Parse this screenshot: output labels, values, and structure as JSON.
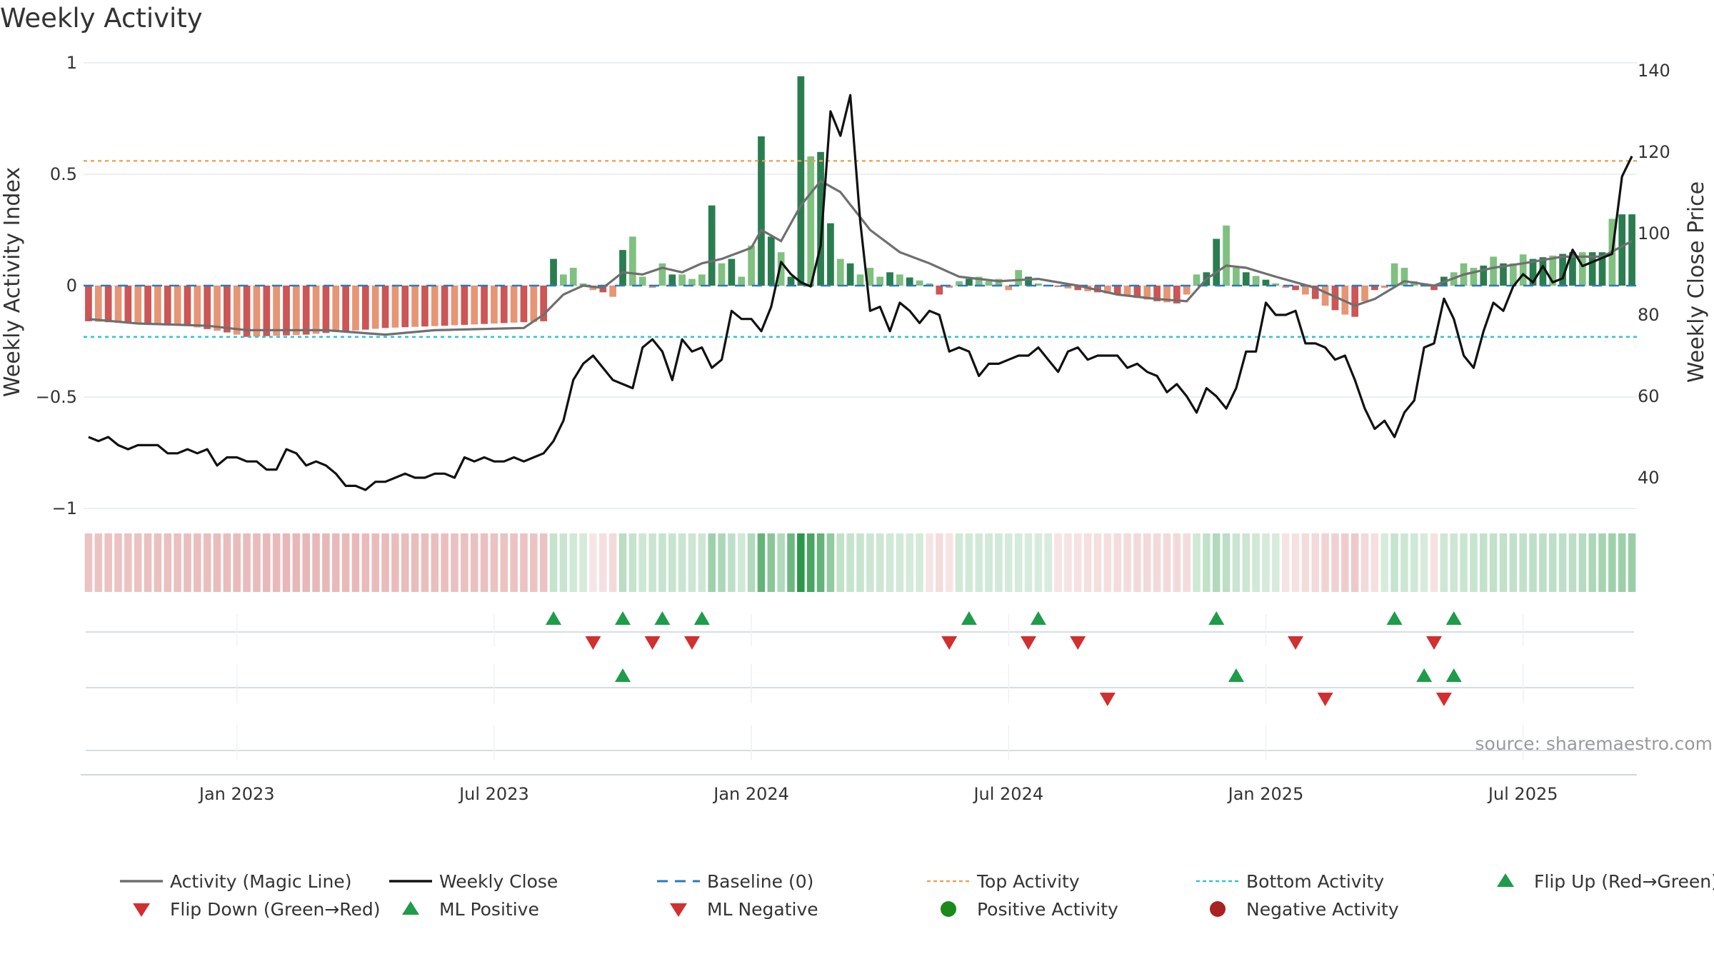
{
  "chart_data": {
    "type": "bar",
    "title": "Weekly Activity",
    "ylabel_left": "Weekly Activity Index",
    "ylabel_right": "Weekly Close Price",
    "y_left_range": [
      -1,
      1
    ],
    "y_left_ticks": [
      "1",
      "0.5",
      "0",
      "−0.5",
      "−1"
    ],
    "y_left_tick_values": [
      1,
      0.5,
      0,
      -0.5,
      -1
    ],
    "y_right_range": [
      30,
      145
    ],
    "y_right_ticks": [
      "140",
      "120",
      "100",
      "80",
      "60",
      "40"
    ],
    "y_right_tick_values": [
      140,
      120,
      100,
      80,
      60,
      40
    ],
    "x_ticks": [
      "Jan 2023",
      "Jul 2023",
      "Jan 2024",
      "Jul 2024",
      "Jan 2025",
      "Jul 2025"
    ],
    "x_tick_weeks": [
      15,
      41,
      67,
      93,
      119,
      145
    ],
    "n_weeks": 157,
    "top_activity": 0.56,
    "bottom_activity": -0.23,
    "baseline": 0,
    "activity_anchors": [
      [
        0,
        -0.16
      ],
      [
        10,
        -0.18
      ],
      [
        14,
        -0.21
      ],
      [
        16,
        -0.23
      ],
      [
        22,
        -0.22
      ],
      [
        30,
        -0.19
      ],
      [
        36,
        -0.18
      ],
      [
        46,
        -0.16
      ],
      [
        47,
        0.12
      ],
      [
        48,
        0.05
      ],
      [
        49,
        0.08
      ],
      [
        50,
        0.01
      ],
      [
        51,
        -0.02
      ],
      [
        52,
        -0.03
      ],
      [
        53,
        -0.05
      ],
      [
        54,
        0.16
      ],
      [
        55,
        0.22
      ],
      [
        56,
        0.04
      ],
      [
        57,
        -0.01
      ],
      [
        58,
        0.1
      ],
      [
        59,
        0.05
      ],
      [
        60,
        0.05
      ],
      [
        61,
        0.03
      ],
      [
        62,
        0.05
      ],
      [
        63,
        0.36
      ],
      [
        64,
        0.1
      ],
      [
        65,
        0.12
      ],
      [
        66,
        0.04
      ],
      [
        67,
        0.18
      ],
      [
        68,
        0.67
      ],
      [
        69,
        0.22
      ],
      [
        70,
        0.15
      ],
      [
        71,
        0.04
      ],
      [
        72,
        0.94
      ],
      [
        73,
        0.58
      ],
      [
        74,
        0.6
      ],
      [
        75,
        0.28
      ],
      [
        76,
        0.12
      ],
      [
        77,
        0.1
      ],
      [
        78,
        0.05
      ],
      [
        79,
        0.08
      ],
      [
        80,
        0.04
      ],
      [
        81,
        0.06
      ],
      [
        82,
        0.05
      ],
      [
        85,
        0.01
      ],
      [
        86,
        -0.04
      ],
      [
        88,
        0.02
      ],
      [
        90,
        0.04
      ],
      [
        91,
        0.02
      ],
      [
        92,
        0.03
      ],
      [
        93,
        -0.02
      ],
      [
        94,
        0.07
      ],
      [
        96,
        0.01
      ],
      [
        100,
        -0.02
      ],
      [
        104,
        -0.04
      ],
      [
        108,
        -0.07
      ],
      [
        110,
        -0.08
      ],
      [
        111,
        -0.04
      ],
      [
        112,
        0.05
      ],
      [
        113,
        0.06
      ],
      [
        114,
        0.21
      ],
      [
        115,
        0.27
      ],
      [
        116,
        0.08
      ],
      [
        117,
        0.06
      ],
      [
        120,
        0.01
      ],
      [
        121,
        -0.01
      ],
      [
        122,
        -0.02
      ],
      [
        123,
        -0.04
      ],
      [
        124,
        -0.06
      ],
      [
        125,
        -0.09
      ],
      [
        126,
        -0.11
      ],
      [
        127,
        -0.13
      ],
      [
        128,
        -0.14
      ],
      [
        129,
        -0.07
      ],
      [
        130,
        -0.02
      ],
      [
        131,
        -0.01
      ],
      [
        132,
        0.1
      ],
      [
        133,
        0.08
      ],
      [
        134,
        0.02
      ],
      [
        135,
        0.01
      ],
      [
        136,
        -0.02
      ],
      [
        137,
        0.04
      ],
      [
        138,
        0.06
      ],
      [
        139,
        0.1
      ],
      [
        140,
        0.08
      ],
      [
        141,
        0.09
      ],
      [
        142,
        0.13
      ],
      [
        143,
        0.1
      ],
      [
        144,
        0.1
      ],
      [
        145,
        0.14
      ],
      [
        146,
        0.12
      ],
      [
        150,
        0.15
      ],
      [
        153,
        0.15
      ],
      [
        154,
        0.3
      ],
      [
        155,
        0.32
      ],
      [
        156,
        0.32
      ]
    ],
    "magic_line_anchors": [
      [
        0,
        -0.15
      ],
      [
        5,
        -0.17
      ],
      [
        12,
        -0.18
      ],
      [
        16,
        -0.2
      ],
      [
        20,
        -0.2
      ],
      [
        24,
        -0.2
      ],
      [
        30,
        -0.22
      ],
      [
        35,
        -0.2
      ],
      [
        44,
        -0.19
      ],
      [
        46,
        -0.13
      ],
      [
        48,
        -0.04
      ],
      [
        50,
        0
      ],
      [
        52,
        -0.01
      ],
      [
        54,
        0.06
      ],
      [
        56,
        0.05
      ],
      [
        58,
        0.08
      ],
      [
        60,
        0.06
      ],
      [
        62,
        0.1
      ],
      [
        64,
        0.12
      ],
      [
        67,
        0.17
      ],
      [
        68,
        0.25
      ],
      [
        70,
        0.2
      ],
      [
        72,
        0.36
      ],
      [
        74,
        0.47
      ],
      [
        76,
        0.42
      ],
      [
        79,
        0.25
      ],
      [
        82,
        0.15
      ],
      [
        85,
        0.1
      ],
      [
        88,
        0.04
      ],
      [
        92,
        0.02
      ],
      [
        96,
        0.03
      ],
      [
        100,
        0
      ],
      [
        104,
        -0.04
      ],
      [
        108,
        -0.06
      ],
      [
        111,
        -0.07
      ],
      [
        113,
        0.03
      ],
      [
        115,
        0.09
      ],
      [
        117,
        0.08
      ],
      [
        120,
        0.04
      ],
      [
        124,
        -0.01
      ],
      [
        128,
        -0.09
      ],
      [
        130,
        -0.06
      ],
      [
        133,
        0.02
      ],
      [
        136,
        0
      ],
      [
        139,
        0.05
      ],
      [
        142,
        0.08
      ],
      [
        145,
        0.1
      ],
      [
        149,
        0.13
      ],
      [
        153,
        0.13
      ],
      [
        156,
        0.2
      ]
    ],
    "weekly_close_anchors": [
      [
        0,
        50
      ],
      [
        1,
        49
      ],
      [
        2,
        50
      ],
      [
        3,
        48
      ],
      [
        4,
        47
      ],
      [
        5,
        48
      ],
      [
        6,
        48
      ],
      [
        7,
        48
      ],
      [
        8,
        46
      ],
      [
        9,
        46
      ],
      [
        10,
        47
      ],
      [
        11,
        46
      ],
      [
        12,
        47
      ],
      [
        13,
        43
      ],
      [
        14,
        45
      ],
      [
        15,
        45
      ],
      [
        16,
        44
      ],
      [
        17,
        44
      ],
      [
        18,
        42
      ],
      [
        19,
        42
      ],
      [
        20,
        47
      ],
      [
        21,
        46
      ],
      [
        22,
        43
      ],
      [
        23,
        44
      ],
      [
        24,
        43
      ],
      [
        25,
        41
      ],
      [
        26,
        38
      ],
      [
        27,
        38
      ],
      [
        28,
        37
      ],
      [
        29,
        39
      ],
      [
        30,
        39
      ],
      [
        31,
        40
      ],
      [
        32,
        41
      ],
      [
        33,
        40
      ],
      [
        34,
        40
      ],
      [
        35,
        41
      ],
      [
        36,
        41
      ],
      [
        37,
        40
      ],
      [
        38,
        45
      ],
      [
        39,
        44
      ],
      [
        40,
        45
      ],
      [
        41,
        44
      ],
      [
        42,
        44
      ],
      [
        43,
        45
      ],
      [
        44,
        44
      ],
      [
        45,
        45
      ],
      [
        46,
        46
      ],
      [
        47,
        49
      ],
      [
        48,
        54
      ],
      [
        49,
        64
      ],
      [
        50,
        68
      ],
      [
        51,
        70
      ],
      [
        52,
        67
      ],
      [
        53,
        64
      ],
      [
        54,
        63
      ],
      [
        55,
        62
      ],
      [
        56,
        72
      ],
      [
        57,
        74
      ],
      [
        58,
        71
      ],
      [
        59,
        64
      ],
      [
        60,
        74
      ],
      [
        61,
        71
      ],
      [
        62,
        72
      ],
      [
        63,
        67
      ],
      [
        64,
        69
      ],
      [
        65,
        81
      ],
      [
        66,
        79
      ],
      [
        67,
        79
      ],
      [
        68,
        76
      ],
      [
        69,
        82
      ],
      [
        70,
        93
      ],
      [
        71,
        90
      ],
      [
        72,
        88
      ],
      [
        73,
        87
      ],
      [
        74,
        97
      ],
      [
        75,
        130
      ],
      [
        76,
        124
      ],
      [
        77,
        134
      ],
      [
        78,
        103
      ],
      [
        79,
        81
      ],
      [
        80,
        82
      ],
      [
        81,
        76
      ],
      [
        82,
        83
      ],
      [
        83,
        81
      ],
      [
        84,
        78
      ],
      [
        85,
        81
      ],
      [
        86,
        80
      ],
      [
        87,
        71
      ],
      [
        88,
        72
      ],
      [
        89,
        71
      ],
      [
        90,
        65
      ],
      [
        91,
        68
      ],
      [
        92,
        68
      ],
      [
        93,
        69
      ],
      [
        94,
        70
      ],
      [
        95,
        70
      ],
      [
        96,
        72
      ],
      [
        97,
        69
      ],
      [
        98,
        66
      ],
      [
        99,
        71
      ],
      [
        100,
        72
      ],
      [
        101,
        69
      ],
      [
        102,
        70
      ],
      [
        103,
        70
      ],
      [
        104,
        70
      ],
      [
        105,
        67
      ],
      [
        106,
        68
      ],
      [
        107,
        66
      ],
      [
        108,
        65
      ],
      [
        109,
        61
      ],
      [
        110,
        63
      ],
      [
        111,
        60
      ],
      [
        112,
        56
      ],
      [
        113,
        62
      ],
      [
        114,
        60
      ],
      [
        115,
        57
      ],
      [
        116,
        62
      ],
      [
        117,
        71
      ],
      [
        118,
        71
      ],
      [
        119,
        83
      ],
      [
        120,
        80
      ],
      [
        121,
        80
      ],
      [
        122,
        81
      ],
      [
        123,
        73
      ],
      [
        124,
        73
      ],
      [
        125,
        72
      ],
      [
        126,
        69
      ],
      [
        127,
        70
      ],
      [
        128,
        64
      ],
      [
        129,
        57
      ],
      [
        130,
        52
      ],
      [
        131,
        54
      ],
      [
        132,
        50
      ],
      [
        133,
        56
      ],
      [
        134,
        59
      ],
      [
        135,
        72
      ],
      [
        136,
        73
      ],
      [
        137,
        84
      ],
      [
        138,
        79
      ],
      [
        139,
        70
      ],
      [
        140,
        67
      ],
      [
        141,
        76
      ],
      [
        142,
        83
      ],
      [
        143,
        81
      ],
      [
        144,
        87
      ],
      [
        145,
        90
      ],
      [
        146,
        88
      ],
      [
        147,
        92
      ],
      [
        148,
        88
      ],
      [
        149,
        89
      ],
      [
        150,
        96
      ],
      [
        151,
        92
      ],
      [
        152,
        93
      ],
      [
        153,
        94
      ],
      [
        154,
        95
      ],
      [
        155,
        114
      ],
      [
        156,
        119
      ]
    ],
    "ribbon_anchors": [
      [
        0,
        -0.16
      ],
      [
        10,
        -0.18
      ],
      [
        22,
        -0.22
      ],
      [
        36,
        -0.18
      ],
      [
        46,
        -0.16
      ],
      [
        47,
        0.1
      ],
      [
        50,
        0.02
      ],
      [
        53,
        -0.05
      ],
      [
        54,
        0.15
      ],
      [
        56,
        0.05
      ],
      [
        58,
        0.1
      ],
      [
        62,
        0.06
      ],
      [
        63,
        0.3
      ],
      [
        66,
        0.05
      ],
      [
        67,
        0.2
      ],
      [
        68,
        0.6
      ],
      [
        70,
        0.2
      ],
      [
        72,
        0.9
      ],
      [
        74,
        0.6
      ],
      [
        76,
        0.12
      ],
      [
        80,
        0.05
      ],
      [
        84,
        0.02
      ],
      [
        86,
        -0.04
      ],
      [
        88,
        0.03
      ],
      [
        92,
        0.03
      ],
      [
        96,
        0.01
      ],
      [
        100,
        -0.02
      ],
      [
        108,
        -0.06
      ],
      [
        111,
        -0.04
      ],
      [
        112,
        0.05
      ],
      [
        114,
        0.2
      ],
      [
        116,
        0.08
      ],
      [
        120,
        0.01
      ],
      [
        122,
        -0.02
      ],
      [
        126,
        -0.1
      ],
      [
        128,
        -0.13
      ],
      [
        129,
        -0.06
      ],
      [
        131,
        0.01
      ],
      [
        132,
        0.1
      ],
      [
        135,
        0.01
      ],
      [
        136,
        -0.02
      ],
      [
        137,
        0.05
      ],
      [
        142,
        0.12
      ],
      [
        150,
        0.14
      ],
      [
        154,
        0.3
      ],
      [
        156,
        0.32
      ]
    ],
    "flip_up_weeks": [
      47,
      54,
      58,
      62,
      89,
      96,
      114,
      132,
      138
    ],
    "flip_down_weeks": [
      51,
      57,
      61,
      87,
      95,
      100,
      122,
      136
    ],
    "ml_positive_weeks": [
      54,
      116,
      135,
      138
    ],
    "ml_negative_weeks": [
      103,
      125,
      137
    ],
    "legend": [
      {
        "label": "Activity (Magic Line)",
        "symbol": "line",
        "color": "#6f6f6f"
      },
      {
        "label": "Weekly Close",
        "symbol": "line",
        "color": "#111111"
      },
      {
        "label": "Baseline (0)",
        "symbol": "dash",
        "color": "#2b7bba"
      },
      {
        "label": "Top Activity",
        "symbol": "dots",
        "color": "#f0a050"
      },
      {
        "label": "Bottom Activity",
        "symbol": "dots",
        "color": "#2cc6d6"
      },
      {
        "label": "Flip Up (Red→Green)",
        "symbol": "tri-up",
        "color": "#1e9c4a"
      },
      {
        "label": "Flip Down (Green→Red)",
        "symbol": "tri-down",
        "color": "#d03030"
      },
      {
        "label": "ML Positive",
        "symbol": "tri-up",
        "color": "#1e9c4a"
      },
      {
        "label": "ML Negative",
        "symbol": "tri-down",
        "color": "#d03030"
      },
      {
        "label": "Positive Activity",
        "symbol": "circle",
        "color": "#1a8a1a"
      },
      {
        "label": "Negative Activity",
        "symbol": "circle",
        "color": "#aa2222"
      }
    ],
    "source_note": "source: sharemaestro.com"
  },
  "colors": {
    "pos_strong": "#2a7d4f",
    "pos_light": "#80c080",
    "neg_strong": "#cc5555",
    "neg_light": "#e69575",
    "magic_line": "#6f6f6f",
    "close_line": "#111111",
    "baseline": "#2b7bba",
    "top_line": "#f0a050",
    "bottom_line": "#2cc6d6",
    "up_marker": "#1e9c4a",
    "down_marker": "#d03030"
  }
}
